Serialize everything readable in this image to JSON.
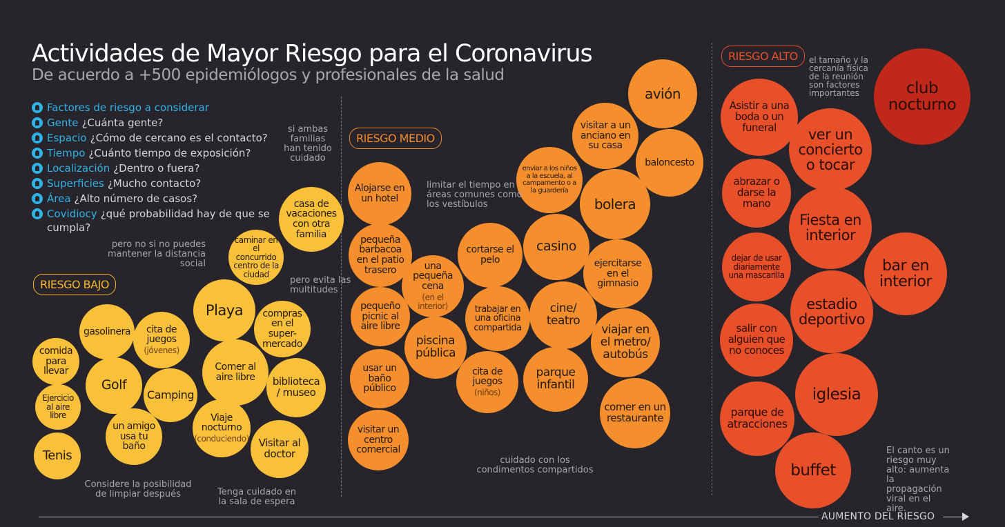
{
  "header": {
    "title": "Actividades de Mayor Riesgo para el Coronavirus",
    "subtitle": "De acuerdo a +500 epidemiólogos y profesionales de la salud"
  },
  "factors": [
    {
      "key": "Factores de riesgo a considerar",
      "value": "",
      "icon": "brain-icon"
    },
    {
      "key": "Gente",
      "value": "¿Cuánta gente?",
      "icon": "people-icon"
    },
    {
      "key": "Espacio",
      "value": "¿Cómo de cercano es el contacto?",
      "icon": "distance-icon"
    },
    {
      "key": "Tiempo",
      "value": "¿Cuánto tiempo de exposición?",
      "icon": "clock-icon"
    },
    {
      "key": "Localización",
      "value": "¿Dentro o fuera?",
      "icon": "tree-icon"
    },
    {
      "key": "Superficies",
      "value": "¿Mucho contacto?",
      "icon": "hand-icon"
    },
    {
      "key": "Área",
      "value": "¿Alto número de casos?",
      "icon": "globe-icon"
    },
    {
      "key": "Covidiocy",
      "value": "¿qué probabilidad hay de que se cumpla?",
      "icon": "head-icon"
    }
  ],
  "zones": {
    "low": "RIESGO BAJO",
    "medium": "RIESGO MEDIO",
    "high": "RIESGO ALTO"
  },
  "colors": {
    "low": "#f9c03a",
    "medium": "#f58e2c",
    "high": "#e8502a",
    "highest": "#c0281a",
    "factor": "#2fb3e6"
  },
  "bubbles": [
    {
      "text": "comida para llevar",
      "sub": ""
    },
    {
      "text": "Ejercicio al aire libre",
      "sub": ""
    },
    {
      "text": "Tenis",
      "sub": ""
    },
    {
      "text": "gasolinera",
      "sub": ""
    },
    {
      "text": "Golf",
      "sub": ""
    },
    {
      "text": "cita de juegos",
      "sub": "(jóvenes)"
    },
    {
      "text": "Camping",
      "sub": ""
    },
    {
      "text": "un amigo usa tu baño",
      "sub": ""
    },
    {
      "text": "Playa",
      "sub": ""
    },
    {
      "text": "caminar en el concurrido centro de la ciudad",
      "sub": ""
    },
    {
      "text": "casa de vacaciones con otra familia",
      "sub": ""
    },
    {
      "text": "compras en el super-mercado",
      "sub": ""
    },
    {
      "text": "Comer al aire libre",
      "sub": ""
    },
    {
      "text": "biblioteca / museo",
      "sub": ""
    },
    {
      "text": "Viaje nocturno",
      "sub": "(conduciendo)"
    },
    {
      "text": "Visitar al doctor",
      "sub": ""
    },
    {
      "text": "Alojarse en un hotel",
      "sub": ""
    },
    {
      "text": "pequeña barbacoa en el patio trasero",
      "sub": ""
    },
    {
      "text": "una pequeña cena",
      "sub": "(en el interior)"
    },
    {
      "text": "pequeño picnic al aire libre",
      "sub": ""
    },
    {
      "text": "piscina pública",
      "sub": ""
    },
    {
      "text": "usar un baño público",
      "sub": ""
    },
    {
      "text": "visitar un centro comercial",
      "sub": ""
    },
    {
      "text": "cortarse el pelo",
      "sub": ""
    },
    {
      "text": "trabajar en una oficina compartida",
      "sub": ""
    },
    {
      "text": "cita de juegos",
      "sub": "(niños)"
    },
    {
      "text": "enviar a los niños a la escuela, al campamento o a la guardería",
      "sub": ""
    },
    {
      "text": "casino",
      "sub": ""
    },
    {
      "text": "cine/ teatro",
      "sub": ""
    },
    {
      "text": "parque infantil",
      "sub": ""
    },
    {
      "text": "visitar a un anciano en su casa",
      "sub": ""
    },
    {
      "text": "avión",
      "sub": ""
    },
    {
      "text": "baloncesto",
      "sub": ""
    },
    {
      "text": "bolera",
      "sub": ""
    },
    {
      "text": "ejercitarse en el gimnasio",
      "sub": ""
    },
    {
      "text": "viajar en el metro/ autobús",
      "sub": ""
    },
    {
      "text": "comer en un restaurante",
      "sub": ""
    },
    {
      "text": "Asistir a una boda o un funeral",
      "sub": ""
    },
    {
      "text": "ver un concierto o tocar",
      "sub": ""
    },
    {
      "text": "abrazar o darse la mano",
      "sub": ""
    },
    {
      "text": "Fiesta en interior",
      "sub": ""
    },
    {
      "text": "dejar de usar diariamente una mascarilla",
      "sub": ""
    },
    {
      "text": "estadio deportivo",
      "sub": ""
    },
    {
      "text": "bar en interior",
      "sub": ""
    },
    {
      "text": "salir con alguien que no conoces",
      "sub": ""
    },
    {
      "text": "iglesia",
      "sub": ""
    },
    {
      "text": "parque de atracciones",
      "sub": ""
    },
    {
      "text": "buffet",
      "sub": ""
    },
    {
      "text": "club nocturno",
      "sub": ""
    }
  ],
  "notes": [
    "si ambas familias han tenido cuidado",
    "pero no si no puedes mantener la distancia social",
    "pero evita las multitudes",
    "Considere la posibilidad de limpiar después",
    "Tenga cuidado en la sala de espera",
    "limitar el tiempo en áreas comunes como los vestíbulos",
    "cuidado con los condimentos compartidos",
    "el tamaño y la cercanía física de la reunión son factores importantes",
    "El canto es un riesgo muy alto: aumenta la propagación viral en el aire."
  ],
  "axis": {
    "label": "AUMENTO DEL RIESGO"
  }
}
